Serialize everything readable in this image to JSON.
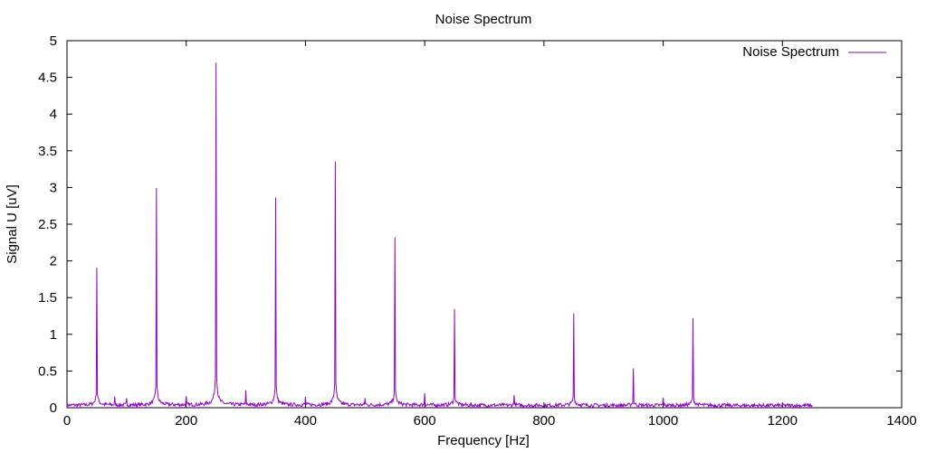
{
  "chart_data": {
    "type": "line",
    "title": "Noise Spectrum",
    "xlabel": "Frequency [Hz]",
    "ylabel": "Signal U [uV]",
    "xlim": [
      0,
      1400
    ],
    "ylim": [
      0,
      5
    ],
    "x_ticks": [
      0,
      200,
      400,
      600,
      800,
      1000,
      1200,
      1400
    ],
    "y_ticks": [
      0,
      0.5,
      1,
      1.5,
      2,
      2.5,
      3,
      3.5,
      4,
      4.5,
      5
    ],
    "x_tick_labels": [
      "0",
      "200",
      "400",
      "600",
      "800",
      "1000",
      "1200",
      "1400"
    ],
    "y_tick_labels": [
      "0",
      "0.5",
      "1",
      "1.5",
      "2",
      "2.5",
      "3",
      "3.5",
      "4",
      "4.5",
      "5"
    ],
    "grid": false,
    "legend_position": "top-right",
    "series": [
      {
        "name": "Noise Spectrum",
        "color": "#9400d3",
        "x_range": [
          0,
          1250
        ],
        "baseline": 0.03,
        "peaks": [
          {
            "x": 50,
            "y": 1.88
          },
          {
            "x": 80,
            "y": 0.1
          },
          {
            "x": 100,
            "y": 0.08
          },
          {
            "x": 150,
            "y": 2.97
          },
          {
            "x": 200,
            "y": 0.1
          },
          {
            "x": 250,
            "y": 4.69
          },
          {
            "x": 300,
            "y": 0.18
          },
          {
            "x": 350,
            "y": 2.82
          },
          {
            "x": 400,
            "y": 0.1
          },
          {
            "x": 450,
            "y": 3.33
          },
          {
            "x": 500,
            "y": 0.1
          },
          {
            "x": 550,
            "y": 2.27
          },
          {
            "x": 600,
            "y": 0.17
          },
          {
            "x": 650,
            "y": 1.3
          },
          {
            "x": 750,
            "y": 0.16
          },
          {
            "x": 850,
            "y": 1.26
          },
          {
            "x": 950,
            "y": 0.5
          },
          {
            "x": 1000,
            "y": 0.1
          },
          {
            "x": 1050,
            "y": 1.17
          }
        ]
      }
    ]
  }
}
